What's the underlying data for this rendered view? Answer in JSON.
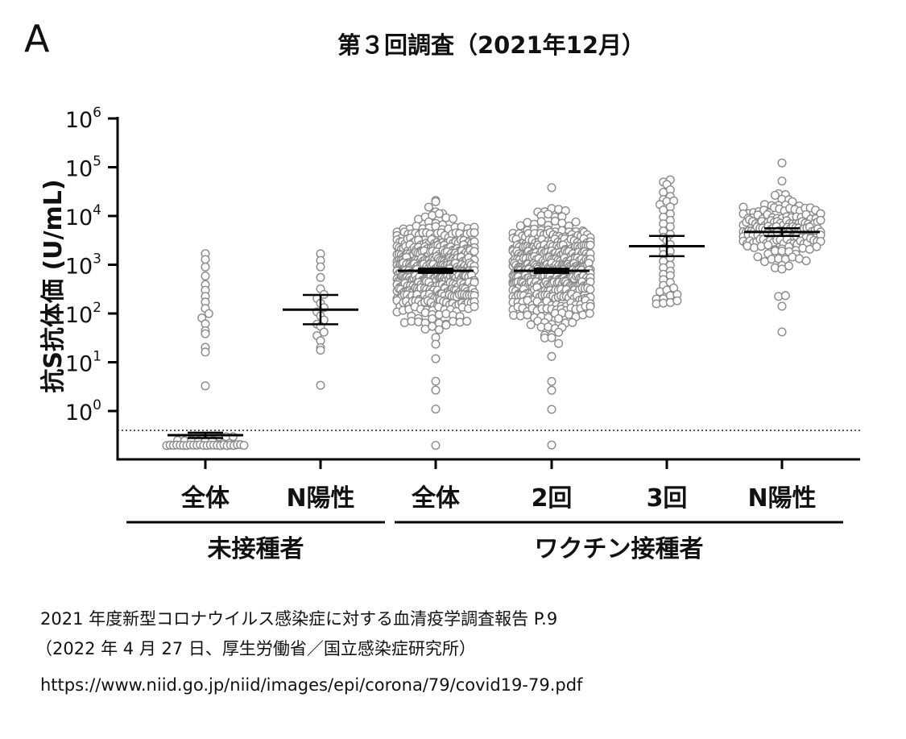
{
  "chart_data": {
    "type": "scatter",
    "panel_label": "A",
    "title": "第３回調査（2021年12月）",
    "ylabel": "抗S抗体価 (U/mL)",
    "yscale": "log",
    "ylim": [
      0.1,
      1000000
    ],
    "yticks": [
      {
        "base": "10",
        "exp": "0"
      },
      {
        "base": "10",
        "exp": "1"
      },
      {
        "base": "10",
        "exp": "2"
      },
      {
        "base": "10",
        "exp": "3"
      },
      {
        "base": "10",
        "exp": "4"
      },
      {
        "base": "10",
        "exp": "5"
      },
      {
        "base": "10",
        "exp": "6"
      }
    ],
    "detection_limit": 0.4,
    "groups": [
      {
        "label": "未接種者",
        "categories": [
          0,
          1
        ]
      },
      {
        "label": "ワクチン接種者",
        "categories": [
          2,
          3,
          4,
          5
        ]
      }
    ],
    "categories": [
      "全体",
      "N陽性",
      "全体",
      "2回",
      "3回",
      "N陽性"
    ],
    "series": [
      {
        "category": "全体",
        "center": 0.32,
        "ci": [
          0.28,
          0.36
        ],
        "values": [
          0.2,
          0.2,
          0.2,
          0.2,
          0.2,
          0.2,
          0.2,
          0.2,
          0.2,
          0.2,
          0.2,
          0.2,
          0.2,
          0.2,
          0.2,
          0.2,
          0.2,
          0.2,
          0.2,
          0.2,
          0.2,
          0.2,
          0.2,
          0.2,
          0.25,
          0.25,
          0.25,
          0.25,
          0.25,
          0.25,
          0.3,
          0.3,
          0.3,
          3.3,
          16,
          20,
          38,
          45,
          60,
          80,
          100,
          130,
          170,
          230,
          300,
          400,
          600,
          900,
          1300,
          1700
        ]
      },
      {
        "category": "N陽性",
        "center": 120,
        "ci": [
          60,
          240
        ],
        "values": [
          3.3,
          18,
          20,
          28,
          35,
          42,
          55,
          60,
          75,
          90,
          110,
          130,
          160,
          200,
          250,
          320,
          550,
          900,
          1200,
          1700
        ]
      },
      {
        "category": "全体",
        "center": 750,
        "ci": [
          680,
          830
        ],
        "distribution": "dense"
      },
      {
        "category": "2回",
        "center": 750,
        "ci": [
          680,
          830
        ],
        "distribution": "dense"
      },
      {
        "category": "3回",
        "center": 2400,
        "ci": [
          1500,
          3900
        ],
        "values": [
          160,
          160,
          170,
          180,
          200,
          200,
          230,
          250,
          280,
          300,
          330,
          380,
          430,
          500,
          600,
          650,
          750,
          850,
          1000,
          1200,
          1400,
          1600,
          1900,
          2200,
          2600,
          3100,
          3600,
          4300,
          5000,
          6000,
          7000,
          8200,
          9500,
          11000,
          13000,
          15000,
          17000,
          20000,
          20000,
          22000,
          25000,
          30000,
          35000,
          45000,
          50000,
          55000
        ]
      },
      {
        "category": "N陽性",
        "center": 4700,
        "ci": [
          3900,
          5600
        ],
        "distribution": "dense_n"
      }
    ]
  },
  "caption": {
    "line1": "2021 年度新型コロナウイルス感染症に対する血清疫学調査報告 P.9",
    "line2": "（2022 年 4 月 27 日、厚生労働省／国立感染症研究所）",
    "line3": "https://www.niid.go.jp/niid/images/epi/corona/79/covid19-79.pdf"
  }
}
